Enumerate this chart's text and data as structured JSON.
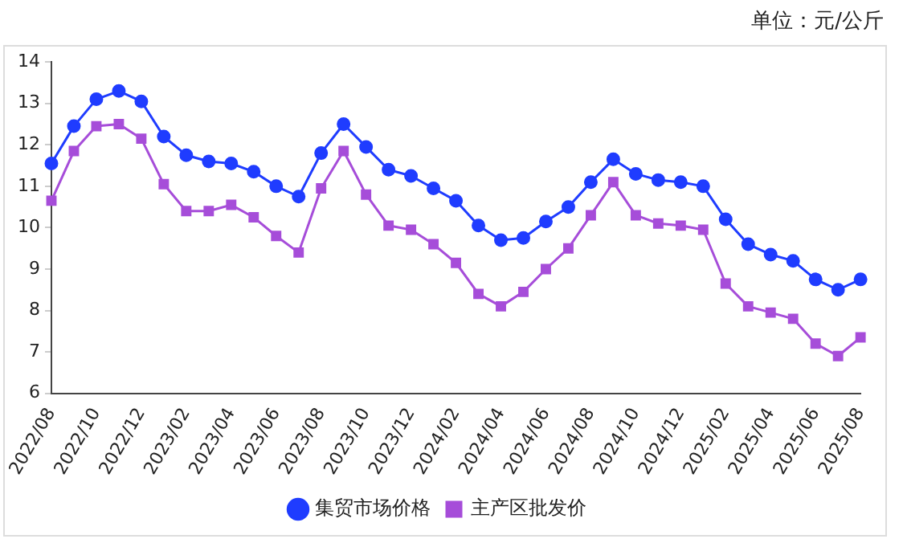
{
  "chart_data": {
    "type": "line",
    "annotations": [
      "单位：元/公斤"
    ],
    "categories": [
      "2022/08",
      null,
      "2022/10",
      null,
      "2022/12",
      null,
      "2023/02",
      null,
      "2023/04",
      null,
      "2023/06",
      null,
      "2023/08",
      null,
      "2023/10",
      null,
      "2023/12",
      null,
      "2024/02",
      null,
      "2024/04",
      null,
      "2024/06",
      null,
      "2024/08",
      null,
      "2024/10",
      null,
      "2024/12",
      null,
      "2025/02",
      null,
      "2025/04",
      null,
      "2025/06",
      null,
      "2025/08"
    ],
    "series": [
      {
        "name": "集贸市场价格",
        "color": "#1f3cff",
        "marker": "circle",
        "values": [
          11.55,
          12.45,
          13.1,
          13.3,
          13.05,
          12.2,
          11.75,
          11.6,
          11.55,
          11.35,
          11.0,
          10.75,
          11.8,
          12.5,
          11.95,
          11.4,
          11.25,
          10.95,
          10.65,
          10.05,
          9.7,
          9.75,
          10.15,
          10.5,
          11.1,
          11.65,
          11.3,
          11.15,
          11.1,
          11.0,
          10.2,
          9.6,
          9.35,
          9.2,
          8.75,
          8.5,
          8.75
        ]
      },
      {
        "name": "主产区批发价",
        "color": "#a64dd9",
        "marker": "square",
        "values": [
          10.65,
          11.85,
          12.45,
          12.5,
          12.15,
          11.05,
          10.4,
          10.4,
          10.55,
          10.25,
          9.8,
          9.4,
          10.95,
          11.85,
          10.8,
          10.05,
          9.95,
          9.6,
          9.15,
          8.4,
          8.1,
          8.45,
          9.0,
          9.5,
          10.3,
          11.1,
          10.3,
          10.1,
          10.05,
          9.95,
          8.65,
          8.1,
          7.95,
          7.8,
          7.2,
          6.9,
          7.35
        ]
      }
    ],
    "ylim": [
      6,
      14
    ],
    "yticks": [
      6,
      7,
      8,
      9,
      10,
      11,
      12,
      13,
      14
    ],
    "grid": false,
    "legend": "bottom",
    "line_style": "solid"
  }
}
